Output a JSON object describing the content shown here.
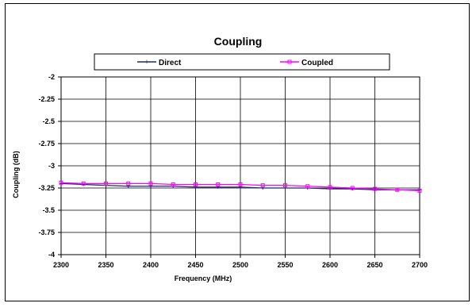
{
  "chart_data": {
    "type": "line",
    "title": "Coupling",
    "xlabel": "Frequency (MHz)",
    "ylabel": "Coupling (dB)",
    "xlim": [
      2300,
      2700
    ],
    "ylim": [
      -4,
      -2
    ],
    "x_ticks": [
      2300,
      2350,
      2400,
      2450,
      2500,
      2550,
      2600,
      2650,
      2700
    ],
    "y_ticks": [
      -2,
      -2.25,
      -2.5,
      -2.75,
      -3,
      -3.25,
      -3.5,
      -3.75,
      -4
    ],
    "grid": true,
    "legend_position": "top",
    "x": [
      2300,
      2325,
      2350,
      2375,
      2400,
      2425,
      2450,
      2475,
      2500,
      2525,
      2550,
      2575,
      2600,
      2625,
      2650,
      2675,
      2700
    ],
    "series": [
      {
        "name": "Direct",
        "color": "#1f2a6b",
        "marker": "plus",
        "values": [
          -3.2,
          -3.21,
          -3.22,
          -3.23,
          -3.23,
          -3.23,
          -3.24,
          -3.24,
          -3.24,
          -3.25,
          -3.25,
          -3.25,
          -3.26,
          -3.26,
          -3.27,
          -3.27,
          -3.27
        ]
      },
      {
        "name": "Coupled",
        "color": "#ff00ff",
        "marker": "square",
        "values": [
          -3.19,
          -3.2,
          -3.2,
          -3.2,
          -3.2,
          -3.21,
          -3.21,
          -3.21,
          -3.21,
          -3.22,
          -3.22,
          -3.23,
          -3.24,
          -3.25,
          -3.26,
          -3.27,
          -3.28
        ]
      }
    ]
  }
}
